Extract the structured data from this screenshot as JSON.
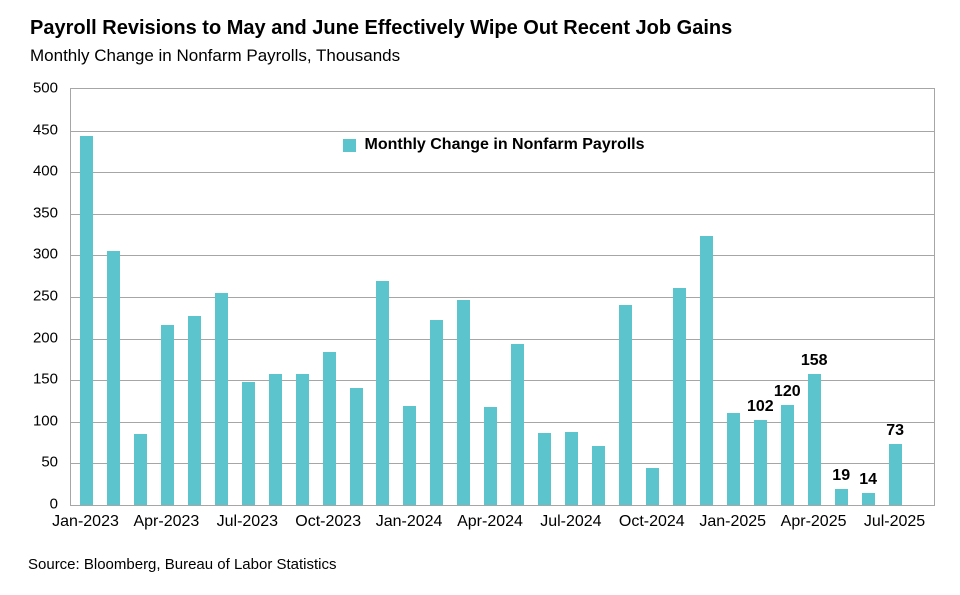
{
  "header": {
    "title": "Payroll Revisions to May and June Effectively Wipe Out Recent Job Gains",
    "subtitle": "Monthly Change in Nonfarm Payrolls, Thousands"
  },
  "source_line": "Source: Bloomberg, Bureau of Labor Statistics",
  "colors": {
    "bar": "#5bc4cd",
    "gridline": "#a6a6a6",
    "text": "#000000"
  },
  "chart_data": {
    "type": "bar",
    "title": "Payroll Revisions to May and June Effectively Wipe Out Recent Job Gains",
    "subtitle": "Monthly Change in Nonfarm Payrolls, Thousands",
    "legend": "Monthly Change in Nonfarm Payrolls",
    "legend_position": "top-center-inside",
    "grid": "horizontal",
    "ylim": [
      0,
      500
    ],
    "y_tick_step": 50,
    "y_tick_labels": [
      "0",
      "50",
      "100",
      "150",
      "200",
      "250",
      "300",
      "350",
      "400",
      "450",
      "500"
    ],
    "x_tick_labels": [
      "Jan-2023",
      "Apr-2023",
      "Jul-2023",
      "Oct-2023",
      "Jan-2024",
      "Apr-2024",
      "Jul-2024",
      "Oct-2024",
      "Jan-2025",
      "Apr-2025",
      "Jul-2025"
    ],
    "categories": [
      "Jan-2023",
      "Feb-2023",
      "Mar-2023",
      "Apr-2023",
      "May-2023",
      "Jun-2023",
      "Jul-2023",
      "Aug-2023",
      "Sep-2023",
      "Oct-2023",
      "Nov-2023",
      "Dec-2023",
      "Jan-2024",
      "Feb-2024",
      "Mar-2024",
      "Apr-2024",
      "May-2024",
      "Jun-2024",
      "Jul-2024",
      "Aug-2024",
      "Sep-2024",
      "Oct-2024",
      "Nov-2024",
      "Dec-2024",
      "Jan-2025",
      "Feb-2025",
      "Mar-2025",
      "Apr-2025",
      "May-2025",
      "Jun-2025",
      "Jul-2025"
    ],
    "values": [
      444,
      305,
      85,
      216,
      227,
      255,
      148,
      157,
      158,
      184,
      141,
      269,
      119,
      222,
      246,
      118,
      193,
      87,
      88,
      71,
      240,
      44,
      261,
      323,
      111,
      102,
      120,
      158,
      19,
      14,
      73
    ],
    "point_labels": [
      null,
      null,
      null,
      null,
      null,
      null,
      null,
      null,
      null,
      null,
      null,
      null,
      null,
      null,
      null,
      null,
      null,
      null,
      null,
      null,
      null,
      null,
      null,
      null,
      null,
      "102",
      "120",
      "158",
      "19",
      "14",
      "73"
    ]
  }
}
